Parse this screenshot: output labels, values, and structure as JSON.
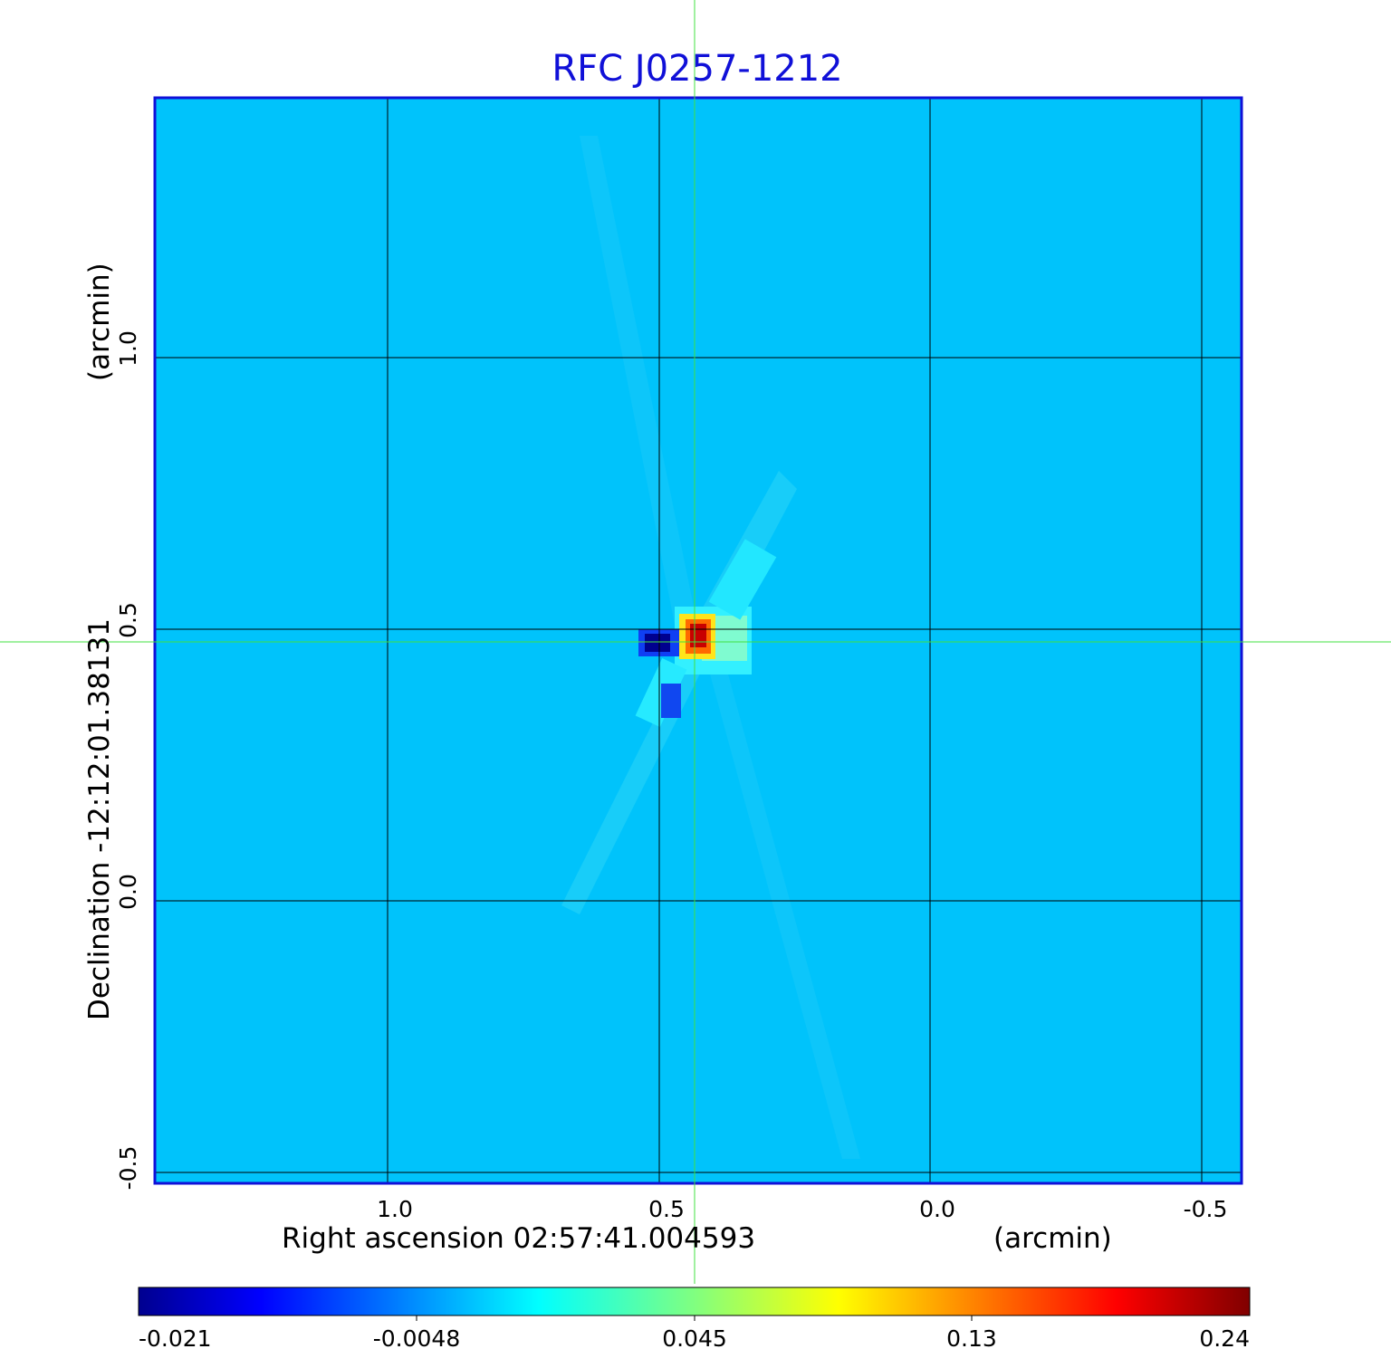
{
  "chart_data": {
    "type": "heatmap",
    "title": "RFC J0257-1212",
    "x_axis": {
      "label": "Right ascension  02:57:41.004593",
      "unit_label": "(arcmin)",
      "ticks": [
        1.0,
        0.5,
        0.0,
        -0.5
      ],
      "tick_labels": [
        "1.0",
        "0.5",
        "0.0",
        "-0.5"
      ],
      "range": [
        1.43,
        -0.57
      ],
      "reversed": true,
      "grid": true
    },
    "y_axis": {
      "label": "Declination  -12:12:01.38131",
      "unit_label": "(arcmin)",
      "ticks": [
        1.0,
        0.5,
        0.0,
        -0.5
      ],
      "tick_labels": [
        "1.0",
        "0.5",
        "0.0",
        "-0.5"
      ],
      "range": [
        -0.52,
        1.48
      ],
      "grid": true
    },
    "colorbar": {
      "colormap": "jet",
      "ticks": [
        -0.021,
        -0.0048,
        0.045,
        0.13,
        0.24
      ],
      "tick_labels": [
        "-0.021",
        "-0.0048",
        "0.045",
        "0.13",
        "0.24"
      ],
      "range": [
        -0.021,
        0.24
      ]
    },
    "crosshair": {
      "x": 0.435,
      "y": 0.478,
      "color": "#40e040"
    },
    "features": [
      {
        "x": 0.43,
        "y": 0.475,
        "value": 0.24
      },
      {
        "x": 0.5,
        "y": 0.475,
        "value": -0.021
      },
      {
        "x": 0.48,
        "y": 0.38,
        "value": -0.015
      }
    ],
    "background_value": 0.005,
    "frame_color": "#1010d8"
  }
}
